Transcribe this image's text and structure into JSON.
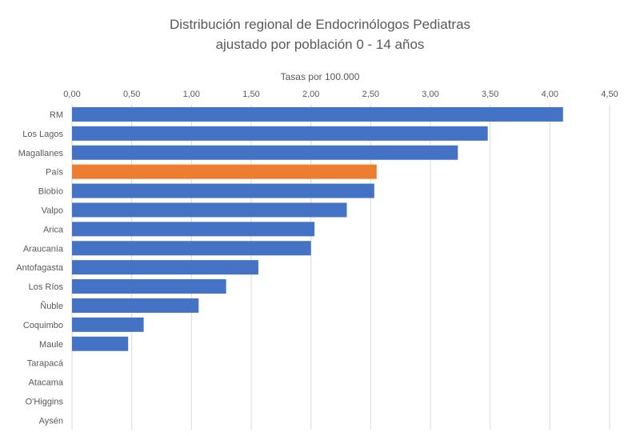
{
  "chart_data": {
    "type": "bar",
    "orientation": "horizontal",
    "title_lines": [
      "Distribución regional de Endocrinólogos Pediatras",
      "ajustado por población 0 - 14 años"
    ],
    "xlabel": "Tasas por 100.000",
    "ylabel": "",
    "xaxis_position": "top",
    "xlim": [
      0,
      4.5
    ],
    "x_ticks": [
      "0,00",
      "0,50",
      "1,00",
      "1,50",
      "2,00",
      "2,50",
      "3,00",
      "3,50",
      "4,00",
      "4,50"
    ],
    "grid": true,
    "legend": "none",
    "categories": [
      "RM",
      "Los Lagos",
      "Magallanes",
      "País",
      "Biobío",
      "Valpo",
      "Arica",
      "Araucanía",
      "Antofagasta",
      "Los Ríos",
      "Ñuble",
      "Coquimbo",
      "Maule",
      "Tarapacá",
      "Atacama",
      "O'Higgins",
      "Aysén"
    ],
    "values": [
      4.11,
      3.48,
      3.23,
      2.55,
      2.53,
      2.3,
      2.03,
      2.0,
      1.56,
      1.29,
      1.06,
      0.6,
      0.47,
      0,
      0,
      0,
      0
    ],
    "colors": {
      "bar": "#4472C4",
      "highlight": "#ED7D31",
      "highlight_category": "País",
      "grid": "#D9D9D9",
      "text": "#595959"
    }
  }
}
